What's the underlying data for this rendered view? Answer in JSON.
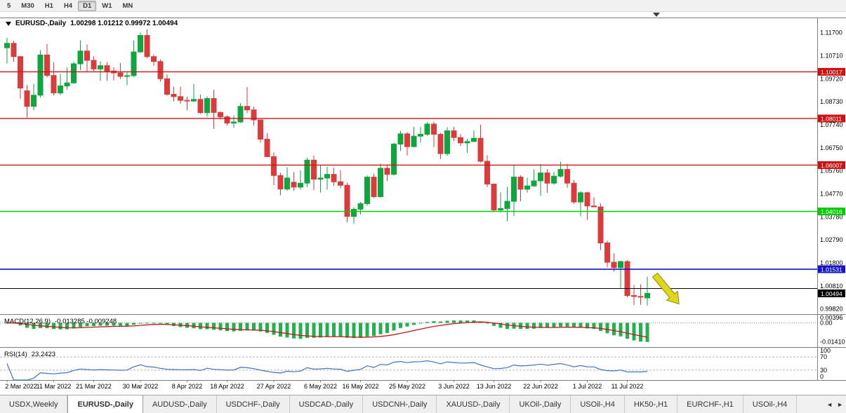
{
  "toolbar": {
    "timeframes": [
      {
        "label": "5",
        "active": false
      },
      {
        "label": "M30",
        "active": false
      },
      {
        "label": "H1",
        "active": false
      },
      {
        "label": "H4",
        "active": false
      },
      {
        "label": "D1",
        "active": true
      },
      {
        "label": "W1",
        "active": false
      },
      {
        "label": "MN",
        "active": false
      }
    ]
  },
  "chart_data": {
    "type": "candlestick",
    "symbol": "EURUSD-,Daily",
    "ohlc_text": "1.00298 1.01212 0.99972 1.00494",
    "price_top": 1.1235,
    "price_bottom": 0.996,
    "y_axis_labels": [
      "1.11700",
      "1.10710",
      "1.09720",
      "1.08730",
      "1.07740",
      "1.06750",
      "1.05760",
      "1.04770",
      "1.03780",
      "1.02790",
      "1.01800",
      "1.00810",
      "0.99820"
    ],
    "x_labels": [
      {
        "i": 0,
        "t": "2 Mar 2022"
      },
      {
        "i": 7,
        "t": "11 Mar 2022"
      },
      {
        "i": 13,
        "t": "21 Mar 2022"
      },
      {
        "i": 20,
        "t": "30 Mar 2022"
      },
      {
        "i": 27,
        "t": "8 Apr 2022"
      },
      {
        "i": 33,
        "t": "18 Apr 2022"
      },
      {
        "i": 40,
        "t": "27 Apr 2022"
      },
      {
        "i": 47,
        "t": "6 May 2022"
      },
      {
        "i": 53,
        "t": "16 May 2022"
      },
      {
        "i": 60,
        "t": "25 May 2022"
      },
      {
        "i": 67,
        "t": "3 Jun 2022"
      },
      {
        "i": 73,
        "t": "13 Jun 2022"
      },
      {
        "i": 80,
        "t": "22 Jun 2022"
      },
      {
        "i": 87,
        "t": "1 Jul 2022"
      },
      {
        "i": 93,
        "t": "11 Jul 2022"
      }
    ],
    "colors": {
      "up": "#0FA63F",
      "down": "#DA3C3C",
      "border": "#7d7d7d"
    },
    "hlines": [
      {
        "price": 1.10017,
        "color": "#CE1212",
        "width": 1.4,
        "label": "1.10017"
      },
      {
        "price": 1.08011,
        "color": "#CE1212",
        "width": 1.4,
        "label": "1.08011"
      },
      {
        "price": 1.06007,
        "color": "#CE1212",
        "width": 1.4,
        "label": "1.06007"
      },
      {
        "price": 1.04016,
        "color": "#00CC00",
        "width": 1.6,
        "label": "1.04016"
      },
      {
        "price": 1.01531,
        "color": "#1515CC",
        "width": 1.6,
        "label": "1.01531"
      },
      {
        "price": 1.007,
        "color": "#000000",
        "width": 1.0,
        "label": null
      }
    ],
    "price_marker": {
      "price": 1.00494,
      "label": "1.00494",
      "color": "#000000"
    },
    "annotations": {
      "arrow": {
        "type": "arrow",
        "direction": "down-right",
        "fill": "#E0D71C",
        "stroke": "#8F8A00",
        "from_price": 1.0128,
        "to_price": 1.0004
      }
    },
    "candles": [
      [
        1.1105,
        1.1148,
        1.1037,
        1.1124
      ],
      [
        1.1124,
        1.1135,
        1.1045,
        1.1067
      ],
      [
        1.1067,
        1.107,
        1.0886,
        1.0932
      ],
      [
        1.092,
        1.0945,
        1.0806,
        1.0853
      ],
      [
        1.0853,
        1.095,
        1.0836,
        1.0901
      ],
      [
        1.0901,
        1.1095,
        1.0891,
        1.1074
      ],
      [
        1.1074,
        1.1121,
        1.0978,
        1.0986
      ],
      [
        1.0986,
        1.1043,
        1.09,
        1.0911
      ],
      [
        1.0911,
        1.0992,
        1.0901,
        1.0941
      ],
      [
        1.0941,
        1.102,
        1.0925,
        1.0954
      ],
      [
        1.0954,
        1.1046,
        1.095,
        1.1036
      ],
      [
        1.1036,
        1.1137,
        1.1009,
        1.1091
      ],
      [
        1.1091,
        1.1119,
        1.1003,
        1.1051
      ],
      [
        1.1051,
        1.1069,
        1.1004,
        1.1014
      ],
      [
        1.1014,
        1.1046,
        1.0963,
        1.1028
      ],
      [
        1.1028,
        1.1044,
        1.0963,
        1.1005
      ],
      [
        1.1005,
        1.1021,
        1.0965,
        1.0997
      ],
      [
        1.0997,
        1.1039,
        1.0971,
        1.0982
      ],
      [
        1.0982,
        1.0999,
        1.0944,
        1.0985
      ],
      [
        1.0985,
        1.1137,
        1.098,
        1.1087
      ],
      [
        1.1087,
        1.1171,
        1.1084,
        1.1158
      ],
      [
        1.1158,
        1.1184,
        1.1061,
        1.1067
      ],
      [
        1.1067,
        1.1076,
        1.1027,
        1.1046
      ],
      [
        1.1046,
        1.1055,
        1.096,
        1.0972
      ],
      [
        1.0972,
        1.099,
        1.0898,
        1.0905
      ],
      [
        1.0905,
        1.0938,
        1.0874,
        1.0895
      ],
      [
        1.0895,
        1.0938,
        1.0864,
        1.0879
      ],
      [
        1.0879,
        1.0895,
        1.0836,
        1.0876
      ],
      [
        1.0876,
        1.095,
        1.0872,
        1.0883
      ],
      [
        1.0883,
        1.0904,
        1.0821,
        1.0826
      ],
      [
        1.0826,
        1.0896,
        1.0809,
        1.0887
      ],
      [
        1.0887,
        1.0924,
        1.0757,
        1.0827
      ],
      [
        1.0827,
        1.0832,
        1.0796,
        1.0808
      ],
      [
        1.0808,
        1.0815,
        1.077,
        1.0781
      ],
      [
        1.0781,
        1.0815,
        1.0761,
        1.0786
      ],
      [
        1.0786,
        1.0867,
        1.0783,
        1.0853
      ],
      [
        1.0853,
        1.0937,
        1.0824,
        1.0838
      ],
      [
        1.0838,
        1.0852,
        1.077,
        1.0795
      ],
      [
        1.0795,
        1.0797,
        1.0697,
        1.0712
      ],
      [
        1.0712,
        1.0738,
        1.0634,
        1.0637
      ],
      [
        1.0637,
        1.0655,
        1.0514,
        1.0556
      ],
      [
        1.0556,
        1.0568,
        1.0471,
        1.0498
      ],
      [
        1.0498,
        1.0592,
        1.049,
        1.0545
      ],
      [
        1.0527,
        1.057,
        1.0491,
        1.0506
      ],
      [
        1.0506,
        1.0578,
        1.0495,
        1.0523
      ],
      [
        1.0523,
        1.0632,
        1.0506,
        1.0622
      ],
      [
        1.0622,
        1.0642,
        1.0493,
        1.054
      ],
      [
        1.054,
        1.0599,
        1.0483,
        1.0545
      ],
      [
        1.0545,
        1.0594,
        1.0495,
        1.0561
      ],
      [
        1.0561,
        1.0589,
        1.0511,
        1.0529
      ],
      [
        1.0529,
        1.0579,
        1.0501,
        1.0514
      ],
      [
        1.0514,
        1.0525,
        1.0354,
        1.038
      ],
      [
        1.038,
        1.042,
        1.0348,
        1.0411
      ],
      [
        1.0411,
        1.0443,
        1.0388,
        1.0435
      ],
      [
        1.0435,
        1.0556,
        1.0426,
        1.0549
      ],
      [
        1.0549,
        1.0564,
        1.0459,
        1.0465
      ],
      [
        1.0465,
        1.0607,
        1.0461,
        1.0587
      ],
      [
        1.0587,
        1.0604,
        1.0532,
        1.0561
      ],
      [
        1.0561,
        1.0697,
        1.0556,
        1.0691
      ],
      [
        1.0691,
        1.0748,
        1.0661,
        1.0735
      ],
      [
        1.0735,
        1.0742,
        1.0642,
        1.068
      ],
      [
        1.068,
        1.0765,
        1.0677,
        1.0725
      ],
      [
        1.0725,
        1.0764,
        1.0697,
        1.0733
      ],
      [
        1.0733,
        1.0786,
        1.0726,
        1.0777
      ],
      [
        1.0777,
        1.0787,
        1.0678,
        1.0733
      ],
      [
        1.0733,
        1.0739,
        1.0627,
        1.065
      ],
      [
        1.065,
        1.0764,
        1.0641,
        1.0748
      ],
      [
        1.0748,
        1.0765,
        1.0704,
        1.0719
      ],
      [
        1.0719,
        1.0734,
        1.0683,
        1.0696
      ],
      [
        1.0696,
        1.0714,
        1.0653,
        1.0702
      ],
      [
        1.0702,
        1.0749,
        1.07,
        1.0716
      ],
      [
        1.0716,
        1.0774,
        1.0612,
        1.0617
      ],
      [
        1.0617,
        1.0643,
        1.0506,
        1.0519
      ],
      [
        1.0519,
        1.052,
        1.0399,
        1.0408
      ],
      [
        1.0408,
        1.0484,
        1.0397,
        1.0414
      ],
      [
        1.0414,
        1.0507,
        1.0359,
        1.0445
      ],
      [
        1.0445,
        1.0601,
        1.0381,
        1.0549
      ],
      [
        1.0549,
        1.0557,
        1.0445,
        1.0497
      ],
      [
        1.0497,
        1.0546,
        1.0483,
        1.0511
      ],
      [
        1.0511,
        1.0582,
        1.0508,
        1.0533
      ],
      [
        1.0533,
        1.0605,
        1.0469,
        1.0567
      ],
      [
        1.0567,
        1.0583,
        1.0482,
        1.0523
      ],
      [
        1.0523,
        1.0571,
        1.0516,
        1.0553
      ],
      [
        1.0553,
        1.0615,
        1.0548,
        1.0582
      ],
      [
        1.0582,
        1.0606,
        1.0503,
        1.0523
      ],
      [
        1.0523,
        1.0536,
        1.0434,
        1.0442
      ],
      [
        1.0442,
        1.0489,
        1.0381,
        1.0482
      ],
      [
        1.0482,
        1.0486,
        1.0365,
        1.0425
      ],
      [
        1.0425,
        1.0462,
        1.042,
        1.0421
      ],
      [
        1.0421,
        1.0436,
        1.0235,
        1.0266
      ],
      [
        1.0266,
        1.0276,
        1.0161,
        1.0183
      ],
      [
        1.0183,
        1.0221,
        1.0143,
        1.016
      ],
      [
        1.016,
        1.019,
        1.0071,
        1.0186
      ],
      [
        1.0186,
        1.0193,
        1.0032,
        1.004
      ],
      [
        1.004,
        1.0086,
        0.9999,
        1.0036
      ],
      [
        1.0036,
        1.0088,
        1.0,
        1.0034
      ],
      [
        1.00298,
        1.01212,
        0.99972,
        1.00494
      ]
    ],
    "macd": {
      "title": "MACD(12,26,9)",
      "values": "-0.013285 -0.009248",
      "params": [
        12,
        26,
        9
      ],
      "axis_labels": [
        "0.00396",
        "0.00",
        "-0.01410"
      ],
      "range_top": 0.0065,
      "range_bottom": -0.018,
      "hist_color": "#22B14C",
      "signal_color": "#C01818"
    },
    "rsi": {
      "title": "RSI(14)",
      "value": "23.2423",
      "period": 14,
      "axis_labels": [
        "100",
        "70",
        "30",
        "0"
      ],
      "guides": [
        70,
        30
      ],
      "color": "#4572C4"
    }
  },
  "tabs": {
    "items": [
      {
        "label": "USDX,Weekly",
        "active": false
      },
      {
        "label": "EURUSD-,Daily",
        "active": true
      },
      {
        "label": "AUDUSD-,Daily",
        "active": false
      },
      {
        "label": "USDCHF-,Daily",
        "active": false
      },
      {
        "label": "USDCAD-,Daily",
        "active": false
      },
      {
        "label": "USDCNH-,Daily",
        "active": false
      },
      {
        "label": "XAUUSD-,Daily",
        "active": false
      },
      {
        "label": "UKOil-,Daily",
        "active": false
      },
      {
        "label": "USOil-,H4",
        "active": false
      },
      {
        "label": "HK50-,H1",
        "active": false
      },
      {
        "label": "EURCHF-,H1",
        "active": false
      },
      {
        "label": "USOil-,H4",
        "active": false
      }
    ],
    "scroll_left": "◄",
    "scroll_right": "►"
  }
}
